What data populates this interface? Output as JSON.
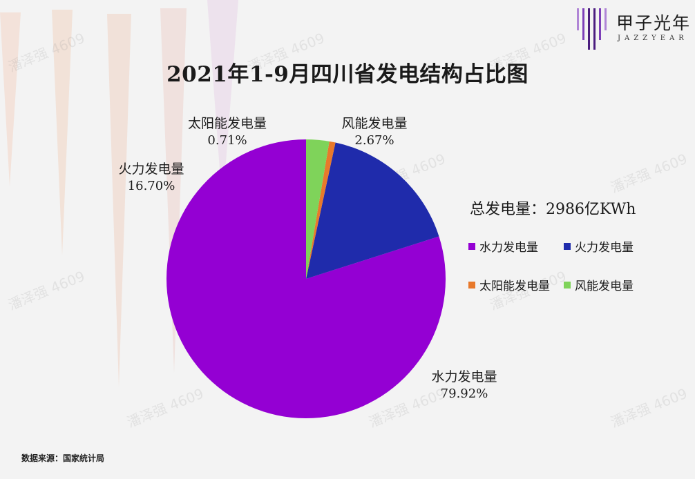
{
  "header": {
    "title": "2021年1-9月四川省发电结构占比图"
  },
  "logo": {
    "name_cn": "甲子光年",
    "name_en": "JAZZYEAR"
  },
  "total_label": "总发电量：2986亿KWh",
  "source": "数据来源：国家统计局",
  "watermark_text": "潘泽强 4609",
  "colors": {
    "hydro": "#9400d3",
    "thermal": "#1f2bab",
    "solar": "#e8792b",
    "wind": "#7fd35a",
    "background": "#f3f3f3"
  },
  "chart_data": {
    "type": "pie",
    "title": "2021年1-9月四川省发电结构占比图",
    "unit": "%",
    "start_angle": "12 o'clock, counterclockwise",
    "slices": [
      {
        "label": "水力发电量",
        "value": 79.92,
        "display": "79.92%",
        "color": "#9400d3"
      },
      {
        "label": "火力发电量",
        "value": 16.7,
        "display": "16.70%",
        "color": "#1f2bab"
      },
      {
        "label": "太阳能发电量",
        "value": 0.71,
        "display": "0.71%",
        "color": "#e8792b"
      },
      {
        "label": "风能发电量",
        "value": 2.67,
        "display": "2.67%",
        "color": "#7fd35a"
      }
    ],
    "legend": {
      "placement": "right",
      "entries": [
        "水力发电量",
        "火力发电量",
        "太阳能发电量",
        "风能发电量"
      ]
    }
  }
}
